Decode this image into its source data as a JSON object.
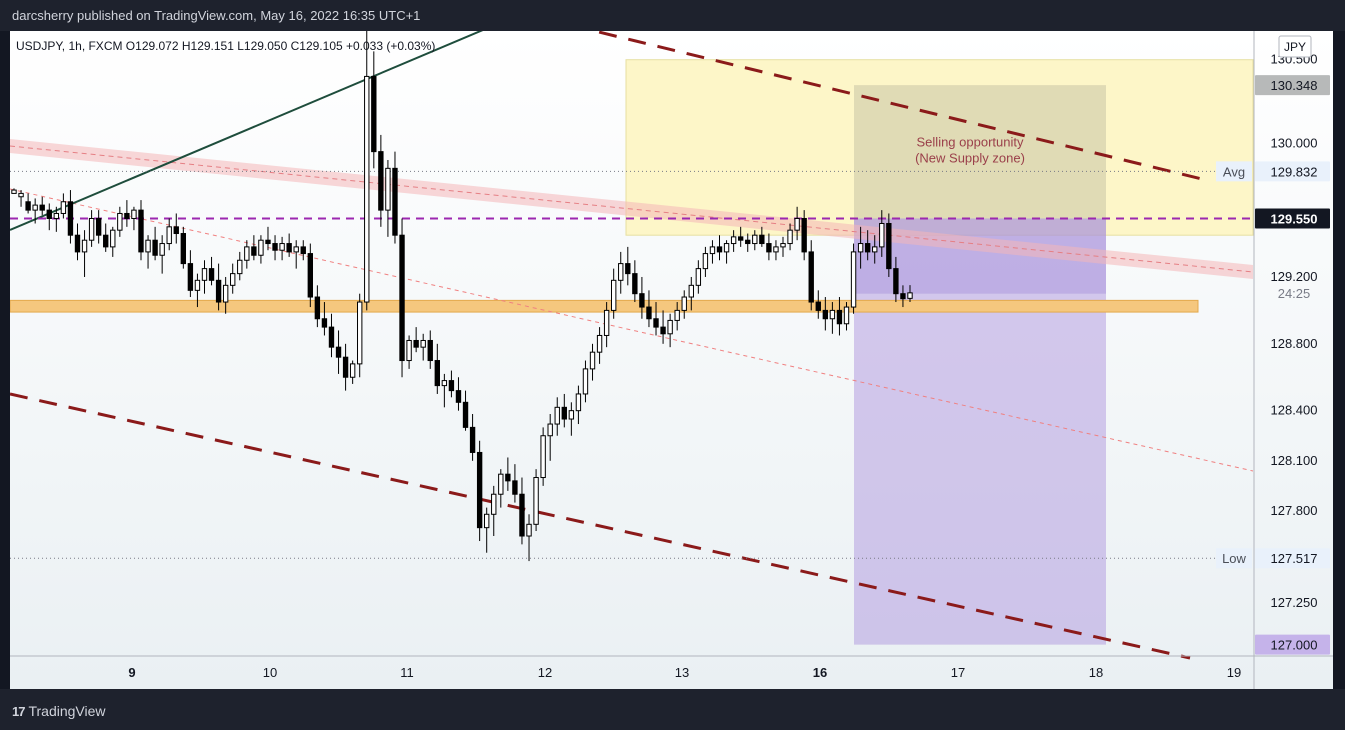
{
  "header": {
    "publisher_text": "darcsherry published on TradingView.com, May 16, 2022 16:35 UTC+1"
  },
  "footer": {
    "brand": "TradingView",
    "logo_icon": "tradingview-logo-icon"
  },
  "chart_data": {
    "type": "candlestick",
    "symbol_line": "USDJPY, 1h, FXCM  O129.072  H129.151  L129.050  C129.105  +0.033 (+0.03%)",
    "currency_label": "JPY",
    "y_tick_labels": [
      "130.500",
      "130.000",
      "129.200",
      "128.800",
      "128.400",
      "128.100",
      "127.800",
      "127.250"
    ],
    "y_ticks": [
      130.5,
      130.0,
      129.2,
      128.8,
      128.4,
      128.1,
      127.8,
      127.25
    ],
    "ylim": [
      126.95,
      130.6
    ],
    "x_tick_labels": [
      "9",
      "10",
      "11",
      "12",
      "13",
      "16",
      "17",
      "18",
      "19"
    ],
    "x_tick_bold": [
      true,
      false,
      false,
      false,
      false,
      true,
      false,
      false,
      false
    ],
    "price_markers": [
      {
        "value": 130.348,
        "label": "130.348",
        "kind": "target-top"
      },
      {
        "tag": "Avg",
        "value": 129.832,
        "label": "129.832",
        "kind": "avg"
      },
      {
        "value": 129.55,
        "label": "129.550",
        "kind": "entry"
      },
      {
        "value": 129.105,
        "label": "24:25",
        "kind": "countdown"
      },
      {
        "tag": "Low",
        "value": 127.517,
        "label": "127.517",
        "kind": "low"
      },
      {
        "value": 127.0,
        "label": "127.000",
        "kind": "target-bottom"
      }
    ],
    "annotation": {
      "line1": "Selling opportunity",
      "line2": "(New Supply zone)"
    },
    "supply_zone": {
      "top": 130.5,
      "bottom": 129.45
    },
    "demand_line": {
      "top": 129.06,
      "bottom": 128.99
    },
    "short_position": {
      "stop": 130.348,
      "entry": 129.55,
      "target": 127.0,
      "fill_level": 129.1
    },
    "candles": [
      [
        129.7,
        129.73,
        129.7,
        129.72
      ],
      [
        129.68,
        129.72,
        129.62,
        129.7
      ],
      [
        129.65,
        129.7,
        129.58,
        129.6
      ],
      [
        129.6,
        129.67,
        129.52,
        129.63
      ],
      [
        129.63,
        129.68,
        129.57,
        129.6
      ],
      [
        129.6,
        129.64,
        129.48,
        129.55
      ],
      [
        129.55,
        129.62,
        129.47,
        129.58
      ],
      [
        129.58,
        129.7,
        129.55,
        129.65
      ],
      [
        129.65,
        129.72,
        129.4,
        129.45
      ],
      [
        129.45,
        129.52,
        129.3,
        129.35
      ],
      [
        129.35,
        129.48,
        129.2,
        129.42
      ],
      [
        129.42,
        129.6,
        129.38,
        129.55
      ],
      [
        129.55,
        129.6,
        129.4,
        129.45
      ],
      [
        129.45,
        129.52,
        129.35,
        129.38
      ],
      [
        129.38,
        129.5,
        129.32,
        129.48
      ],
      [
        129.48,
        129.62,
        129.44,
        129.58
      ],
      [
        129.58,
        129.66,
        129.5,
        129.55
      ],
      [
        129.55,
        129.62,
        129.48,
        129.6
      ],
      [
        129.6,
        129.66,
        129.3,
        129.35
      ],
      [
        129.35,
        129.45,
        129.25,
        129.42
      ],
      [
        129.42,
        129.5,
        129.3,
        129.33
      ],
      [
        129.33,
        129.45,
        129.22,
        129.4
      ],
      [
        129.4,
        129.55,
        129.36,
        129.5
      ],
      [
        129.5,
        129.58,
        129.4,
        129.46
      ],
      [
        129.46,
        129.5,
        129.25,
        129.28
      ],
      [
        129.28,
        129.36,
        129.08,
        129.12
      ],
      [
        129.12,
        129.22,
        129.02,
        129.18
      ],
      [
        129.18,
        129.3,
        129.1,
        129.25
      ],
      [
        129.25,
        129.32,
        129.15,
        129.18
      ],
      [
        129.18,
        129.28,
        129.0,
        129.05
      ],
      [
        129.05,
        129.2,
        128.98,
        129.15
      ],
      [
        129.15,
        129.28,
        129.1,
        129.22
      ],
      [
        129.22,
        129.35,
        129.18,
        129.3
      ],
      [
        129.3,
        129.42,
        129.25,
        129.38
      ],
      [
        129.38,
        129.45,
        129.3,
        129.33
      ],
      [
        129.33,
        129.45,
        129.28,
        129.42
      ],
      [
        129.42,
        129.5,
        129.36,
        129.4
      ],
      [
        129.4,
        129.45,
        129.3,
        129.36
      ],
      [
        129.36,
        129.44,
        129.3,
        129.4
      ],
      [
        129.4,
        129.46,
        129.32,
        129.35
      ],
      [
        129.35,
        129.42,
        129.25,
        129.38
      ],
      [
        129.38,
        129.42,
        129.3,
        129.34
      ],
      [
        129.34,
        129.4,
        129.02,
        129.08
      ],
      [
        129.08,
        129.15,
        128.9,
        128.95
      ],
      [
        128.95,
        129.05,
        128.85,
        128.9
      ],
      [
        128.9,
        128.98,
        128.72,
        128.78
      ],
      [
        128.78,
        128.88,
        128.62,
        128.72
      ],
      [
        128.72,
        128.8,
        128.52,
        128.6
      ],
      [
        128.6,
        128.7,
        128.56,
        128.68
      ],
      [
        128.68,
        129.1,
        128.6,
        129.05
      ],
      [
        129.05,
        131.0,
        129.0,
        130.4
      ],
      [
        130.4,
        130.55,
        129.85,
        129.95
      ],
      [
        129.95,
        130.05,
        129.5,
        129.6
      ],
      [
        129.6,
        129.9,
        129.44,
        129.85
      ],
      [
        129.85,
        129.95,
        129.4,
        129.45
      ],
      [
        129.45,
        129.55,
        128.6,
        128.7
      ],
      [
        128.7,
        128.85,
        128.65,
        128.82
      ],
      [
        128.82,
        128.9,
        128.75,
        128.78
      ],
      [
        128.78,
        128.86,
        128.7,
        128.82
      ],
      [
        128.82,
        128.88,
        128.65,
        128.7
      ],
      [
        128.7,
        128.8,
        128.5,
        128.55
      ],
      [
        128.55,
        128.62,
        128.42,
        128.58
      ],
      [
        128.58,
        128.64,
        128.48,
        128.52
      ],
      [
        128.52,
        128.6,
        128.4,
        128.45
      ],
      [
        128.45,
        128.52,
        128.28,
        128.3
      ],
      [
        128.3,
        128.38,
        128.1,
        128.15
      ],
      [
        128.15,
        128.22,
        127.62,
        127.7
      ],
      [
        127.7,
        127.82,
        127.55,
        127.78
      ],
      [
        127.78,
        127.95,
        127.65,
        127.9
      ],
      [
        127.9,
        128.05,
        127.82,
        128.02
      ],
      [
        128.02,
        128.12,
        127.92,
        127.98
      ],
      [
        127.98,
        128.08,
        127.85,
        127.9
      ],
      [
        127.9,
        128.0,
        127.6,
        127.65
      ],
      [
        127.65,
        127.78,
        127.5,
        127.72
      ],
      [
        127.72,
        128.05,
        127.68,
        128.0
      ],
      [
        128.0,
        128.3,
        127.95,
        128.25
      ],
      [
        128.25,
        128.38,
        128.1,
        128.32
      ],
      [
        128.32,
        128.48,
        128.25,
        128.42
      ],
      [
        128.42,
        128.5,
        128.3,
        128.35
      ],
      [
        128.35,
        128.45,
        128.25,
        128.4
      ],
      [
        128.4,
        128.55,
        128.32,
        128.5
      ],
      [
        128.5,
        128.7,
        128.45,
        128.65
      ],
      [
        128.65,
        128.8,
        128.58,
        128.75
      ],
      [
        128.75,
        128.9,
        128.68,
        128.85
      ],
      [
        128.85,
        129.05,
        128.78,
        129.0
      ],
      [
        129.0,
        129.25,
        128.95,
        129.18
      ],
      [
        129.18,
        129.35,
        129.1,
        129.28
      ],
      [
        129.28,
        129.38,
        129.15,
        129.22
      ],
      [
        129.22,
        129.3,
        129.05,
        129.1
      ],
      [
        129.1,
        129.2,
        128.95,
        129.02
      ],
      [
        129.02,
        129.12,
        128.9,
        128.95
      ],
      [
        128.95,
        129.05,
        128.85,
        128.9
      ],
      [
        128.9,
        129.0,
        128.8,
        128.86
      ],
      [
        128.86,
        128.98,
        128.78,
        128.94
      ],
      [
        128.94,
        129.05,
        128.88,
        129.0
      ],
      [
        129.0,
        129.12,
        128.95,
        129.08
      ],
      [
        129.08,
        129.2,
        129.0,
        129.15
      ],
      [
        129.15,
        129.3,
        129.1,
        129.25
      ],
      [
        129.25,
        129.38,
        129.2,
        129.34
      ],
      [
        129.34,
        129.42,
        129.28,
        129.38
      ],
      [
        129.38,
        129.45,
        129.3,
        129.35
      ],
      [
        129.35,
        129.42,
        129.28,
        129.4
      ],
      [
        129.4,
        129.48,
        129.35,
        129.44
      ],
      [
        129.44,
        129.5,
        129.38,
        129.42
      ],
      [
        129.42,
        129.46,
        129.35,
        129.4
      ],
      [
        129.4,
        129.48,
        129.36,
        129.45
      ],
      [
        129.45,
        129.5,
        129.38,
        129.4
      ],
      [
        129.4,
        129.46,
        129.3,
        129.35
      ],
      [
        129.35,
        129.42,
        129.3,
        129.38
      ],
      [
        129.38,
        129.44,
        129.32,
        129.4
      ],
      [
        129.4,
        129.52,
        129.36,
        129.48
      ],
      [
        129.48,
        129.62,
        129.42,
        129.55
      ],
      [
        129.55,
        129.6,
        129.3,
        129.35
      ],
      [
        129.35,
        129.42,
        129.0,
        129.05
      ],
      [
        129.05,
        129.12,
        128.95,
        129.0
      ],
      [
        129.0,
        129.08,
        128.88,
        128.95
      ],
      [
        128.95,
        129.05,
        128.86,
        129.0
      ],
      [
        129.0,
        129.08,
        128.85,
        128.92
      ],
      [
        128.92,
        129.05,
        128.88,
        129.02
      ],
      [
        129.02,
        129.4,
        128.98,
        129.35
      ],
      [
        129.35,
        129.5,
        129.25,
        129.4
      ],
      [
        129.4,
        129.48,
        129.3,
        129.35
      ],
      [
        129.35,
        129.45,
        129.28,
        129.38
      ],
      [
        129.38,
        129.6,
        129.32,
        129.52
      ],
      [
        129.52,
        129.58,
        129.2,
        129.25
      ],
      [
        129.25,
        129.32,
        129.05,
        129.1
      ],
      [
        129.1,
        129.15,
        129.02,
        129.07
      ],
      [
        129.072,
        129.151,
        129.05,
        129.105
      ]
    ],
    "colors": {
      "up": "#ffffff",
      "down": "#000000",
      "wick": "#000000",
      "supply_zone": "#fdf6c8",
      "demand_line": "#f5c77e",
      "short_box": "#b49fe0",
      "stop_box": "#c9c4a6",
      "channel": "#8b1a1a",
      "trendline": "#1e4d3c",
      "pink_band": "#f4b6b8"
    }
  }
}
